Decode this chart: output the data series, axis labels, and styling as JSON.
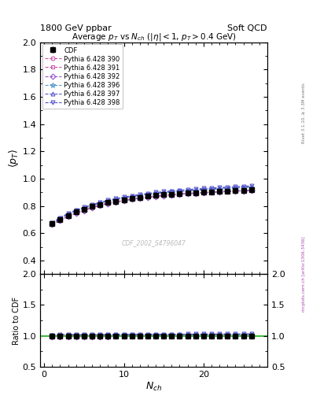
{
  "title_top_left": "1800 GeV ppbar",
  "title_top_right": "Soft QCD",
  "plot_title": "Average $p_T$ vs $N_{ch}$ ($|\\eta| < 1$, $p_T > 0.4$ GeV)",
  "xlabel": "$N_{ch}$",
  "ylabel_main": "$\\langle p_T \\rangle$",
  "ylabel_ratio": "Ratio to CDF",
  "watermark": "CDF_2002_S4796047",
  "right_label": "mcplots.cern.ch [arXiv:1306.3436]",
  "right_label2": "Rivet 3.1.10, ≥ 3.3M events",
  "ylim_main": [
    0.3,
    2.0
  ],
  "ylim_ratio": [
    0.5,
    2.0
  ],
  "xlim": [
    -0.5,
    28
  ],
  "nch_values": [
    1,
    2,
    3,
    4,
    5,
    6,
    7,
    8,
    9,
    10,
    11,
    12,
    13,
    14,
    15,
    16,
    17,
    18,
    19,
    20,
    21,
    22,
    23,
    24,
    25,
    26
  ],
  "cdf_data": [
    0.67,
    0.7,
    0.73,
    0.755,
    0.775,
    0.795,
    0.81,
    0.825,
    0.835,
    0.845,
    0.855,
    0.863,
    0.87,
    0.876,
    0.882,
    0.887,
    0.891,
    0.895,
    0.898,
    0.901,
    0.904,
    0.907,
    0.91,
    0.913,
    0.915,
    0.917
  ],
  "cdf_yerr": [
    0.01,
    0.008,
    0.007,
    0.006,
    0.006,
    0.005,
    0.005,
    0.005,
    0.005,
    0.005,
    0.005,
    0.005,
    0.005,
    0.005,
    0.005,
    0.005,
    0.005,
    0.005,
    0.005,
    0.005,
    0.005,
    0.005,
    0.005,
    0.005,
    0.005,
    0.005
  ],
  "pythia_labels": [
    "Pythia 6.428 390",
    "Pythia 6.428 391",
    "Pythia 6.428 392",
    "Pythia 6.428 396",
    "Pythia 6.428 397",
    "Pythia 6.428 398"
  ],
  "pythia_colors": [
    "#cc55aa",
    "#cc55aa",
    "#9955cc",
    "#5599cc",
    "#5555cc",
    "#5555cc"
  ],
  "pythia_markers": [
    "o",
    "s",
    "D",
    "*",
    "^",
    "v"
  ],
  "pythia_markersizes": [
    3.5,
    3.5,
    3.5,
    4.5,
    3.5,
    3.5
  ],
  "pythia_data": [
    [
      0.665,
      0.695,
      0.725,
      0.748,
      0.768,
      0.788,
      0.804,
      0.819,
      0.83,
      0.84,
      0.85,
      0.858,
      0.865,
      0.872,
      0.878,
      0.883,
      0.887,
      0.891,
      0.894,
      0.898,
      0.901,
      0.904,
      0.907,
      0.91,
      0.912,
      0.915
    ],
    [
      0.668,
      0.698,
      0.728,
      0.751,
      0.771,
      0.791,
      0.807,
      0.822,
      0.832,
      0.842,
      0.852,
      0.86,
      0.867,
      0.873,
      0.879,
      0.884,
      0.889,
      0.893,
      0.896,
      0.899,
      0.902,
      0.905,
      0.908,
      0.911,
      0.913,
      0.916
    ],
    [
      0.662,
      0.692,
      0.722,
      0.745,
      0.765,
      0.785,
      0.801,
      0.816,
      0.827,
      0.837,
      0.847,
      0.855,
      0.862,
      0.869,
      0.875,
      0.88,
      0.885,
      0.889,
      0.892,
      0.896,
      0.899,
      0.902,
      0.905,
      0.908,
      0.91,
      0.913
    ],
    [
      0.672,
      0.705,
      0.738,
      0.762,
      0.782,
      0.802,
      0.818,
      0.833,
      0.845,
      0.856,
      0.866,
      0.875,
      0.882,
      0.889,
      0.895,
      0.9,
      0.905,
      0.909,
      0.913,
      0.917,
      0.92,
      0.924,
      0.927,
      0.93,
      0.933,
      0.936
    ],
    [
      0.675,
      0.71,
      0.742,
      0.766,
      0.786,
      0.806,
      0.822,
      0.838,
      0.85,
      0.861,
      0.871,
      0.88,
      0.887,
      0.894,
      0.9,
      0.906,
      0.911,
      0.915,
      0.919,
      0.923,
      0.926,
      0.93,
      0.933,
      0.936,
      0.939,
      0.942
    ],
    [
      0.678,
      0.713,
      0.746,
      0.77,
      0.79,
      0.81,
      0.826,
      0.842,
      0.854,
      0.865,
      0.875,
      0.884,
      0.892,
      0.899,
      0.905,
      0.91,
      0.915,
      0.92,
      0.924,
      0.928,
      0.931,
      0.935,
      0.938,
      0.941,
      0.944,
      0.947
    ]
  ],
  "ratio_line_color": "#44bb44",
  "background_color": "#ffffff"
}
